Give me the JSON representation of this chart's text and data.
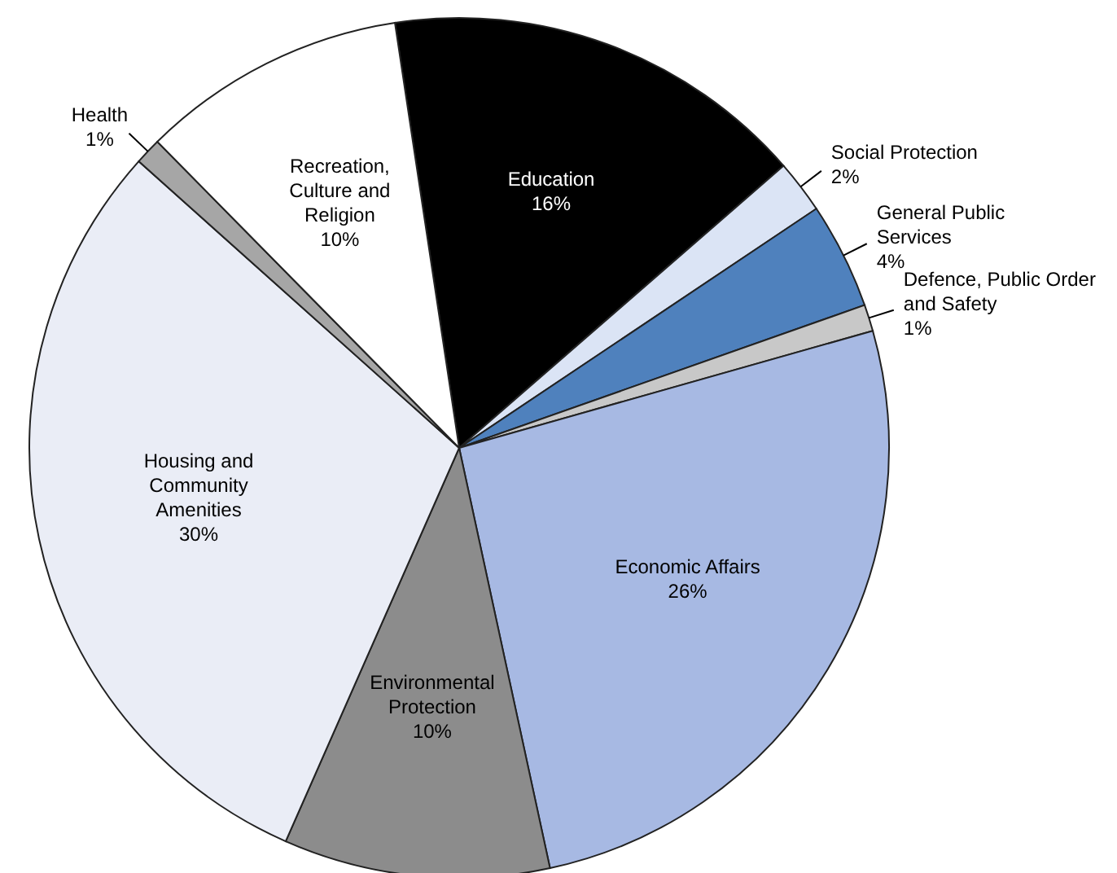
{
  "chart_data": {
    "type": "pie",
    "categories": [
      "Education",
      "Social Protection",
      "General Public Services",
      "Defence, Public Order and Safety",
      "Economic Affairs",
      "Environmental Protection",
      "Housing and Community Amenities",
      "Health",
      "Recreation, Culture and Religion"
    ],
    "values": [
      16,
      2,
      4,
      1,
      26,
      10,
      30,
      1,
      10
    ],
    "value_labels": [
      "16%",
      "2%",
      "4%",
      "1%",
      "26%",
      "10%",
      "30%",
      "1%",
      "10%"
    ],
    "colors": [
      "#000000",
      "#dbe4f5",
      "#4f81bd",
      "#c8c8c8",
      "#a7b9e3",
      "#8c8c8c",
      "#eaedf6",
      "#a6a6a6",
      "#ffffff"
    ]
  }
}
